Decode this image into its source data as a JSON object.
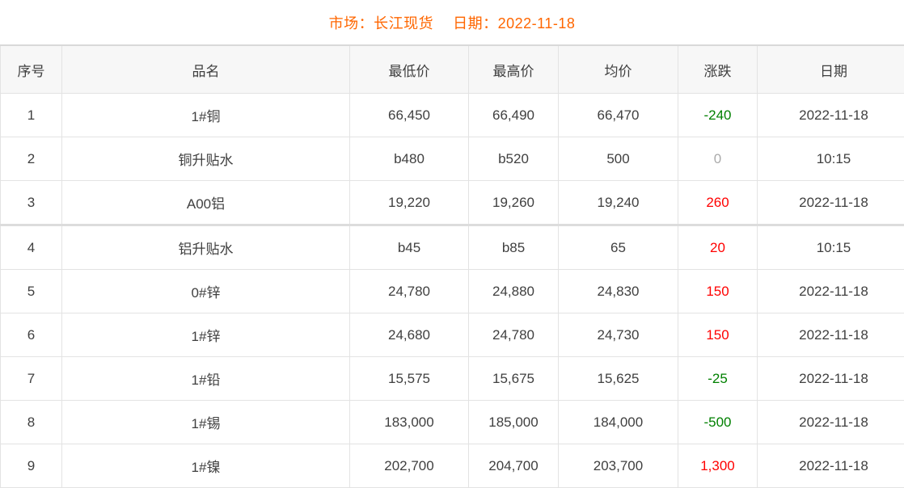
{
  "header": {
    "market_label": "市场：",
    "market_value": "长江现货",
    "date_label": "日期：",
    "date_value": "2022-11-18"
  },
  "chart_data": {
    "type": "table",
    "title": "市场：长江现货 日期：2022-11-18",
    "columns": [
      "序号",
      "品名",
      "最低价",
      "最高价",
      "均价",
      "涨跌",
      "日期"
    ],
    "column_keys": [
      "index",
      "name",
      "low",
      "high",
      "avg",
      "change",
      "date"
    ],
    "rows": [
      {
        "index": "1",
        "name": "1#铜",
        "low": "66,450",
        "high": "66,490",
        "avg": "66,470",
        "change": "-240",
        "trend": "down",
        "date": "2022-11-18"
      },
      {
        "index": "2",
        "name": "铜升贴水",
        "low": "b480",
        "high": "b520",
        "avg": "500",
        "change": "0",
        "trend": "flat",
        "date": "10:15"
      },
      {
        "index": "3",
        "name": "A00铝",
        "low": "19,220",
        "high": "19,260",
        "avg": "19,240",
        "change": "260",
        "trend": "up",
        "date": "2022-11-18"
      },
      {
        "index": "4",
        "name": "铝升贴水",
        "low": "b45",
        "high": "b85",
        "avg": "65",
        "change": "20",
        "trend": "up",
        "date": "10:15"
      },
      {
        "index": "5",
        "name": "0#锌",
        "low": "24,780",
        "high": "24,880",
        "avg": "24,830",
        "change": "150",
        "trend": "up",
        "date": "2022-11-18"
      },
      {
        "index": "6",
        "name": "1#锌",
        "low": "24,680",
        "high": "24,780",
        "avg": "24,730",
        "change": "150",
        "trend": "up",
        "date": "2022-11-18"
      },
      {
        "index": "7",
        "name": "1#铅",
        "low": "15,575",
        "high": "15,675",
        "avg": "15,625",
        "change": "-25",
        "trend": "down",
        "date": "2022-11-18"
      },
      {
        "index": "8",
        "name": "1#锡",
        "low": "183,000",
        "high": "185,000",
        "avg": "184,000",
        "change": "-500",
        "trend": "down",
        "date": "2022-11-18"
      },
      {
        "index": "9",
        "name": "1#镍",
        "low": "202,700",
        "high": "204,700",
        "avg": "203,700",
        "change": "1,300",
        "trend": "up",
        "date": "2022-11-18"
      }
    ],
    "layout": {
      "thick_separator_above_row_index": "4",
      "grid": "on"
    }
  },
  "colors": {
    "accent_orange": "#ff6600",
    "change_up_red": "#ff0000",
    "change_down_green": "#008000",
    "change_zero_gray": "#aaaaaa",
    "header_bg": "#f7f7f7",
    "row_bg": "#ffffff",
    "border_gray": "#e3e3e3",
    "text_gray": "#404040"
  }
}
